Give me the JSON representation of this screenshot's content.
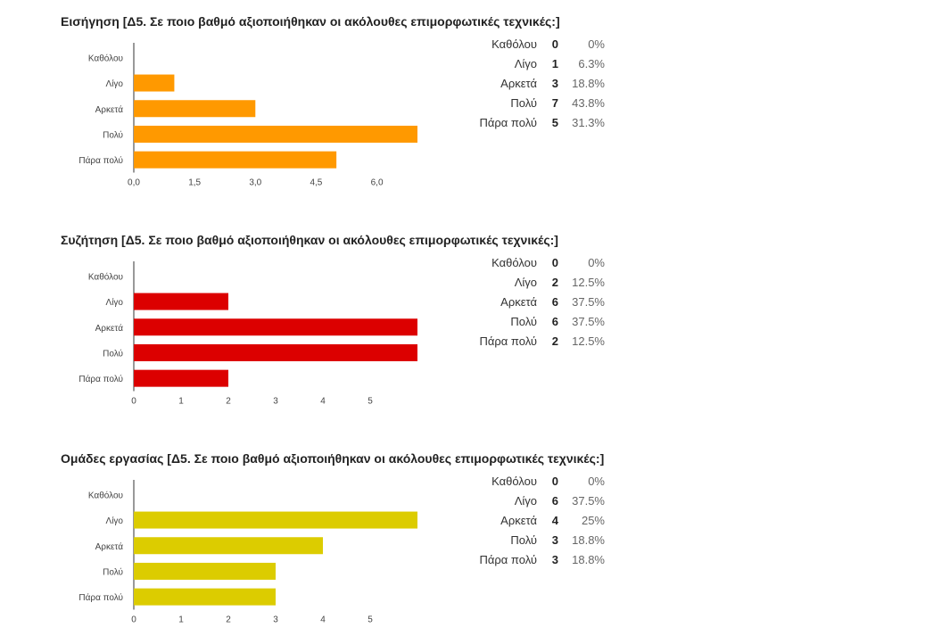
{
  "chart_data": [
    {
      "type": "bar",
      "orientation": "horizontal",
      "title": "Εισήγηση [Δ5. Σε ποιο βαθμό αξιοποιήθηκαν οι ακόλουθες επιμορφωτικές τεχνικές:]",
      "categories": [
        "Καθόλου",
        "Λίγο",
        "Αρκετά",
        "Πολύ",
        "Πάρα πολύ"
      ],
      "values": [
        0,
        1,
        3,
        7,
        5
      ],
      "percentages": [
        "0%",
        "6.3%",
        "18.8%",
        "43.8%",
        "31.3%"
      ],
      "xticks": [
        "0,0",
        "1,5",
        "3,0",
        "4,5",
        "6,0"
      ],
      "xlim": [
        0,
        7
      ],
      "color": "#FF9900"
    },
    {
      "type": "bar",
      "orientation": "horizontal",
      "title": "Συζήτηση [Δ5. Σε ποιο βαθμό αξιοποιήθηκαν οι ακόλουθες επιμορφωτικές τεχνικές:]",
      "categories": [
        "Καθόλου",
        "Λίγο",
        "Αρκετά",
        "Πολύ",
        "Πάρα πολύ"
      ],
      "values": [
        0,
        2,
        6,
        6,
        2
      ],
      "percentages": [
        "0%",
        "12.5%",
        "37.5%",
        "37.5%",
        "12.5%"
      ],
      "xticks": [
        "0",
        "1",
        "2",
        "3",
        "4",
        "5"
      ],
      "xlim": [
        0,
        6
      ],
      "color": "#DC0000"
    },
    {
      "type": "bar",
      "orientation": "horizontal",
      "title": "Ομάδες εργασίας [Δ5. Σε ποιο βαθμό αξιοποιήθηκαν οι ακόλουθες επιμορφωτικές τεχνικές:]",
      "categories": [
        "Καθόλου",
        "Λίγο",
        "Αρκετά",
        "Πολύ",
        "Πάρα πολύ"
      ],
      "values": [
        0,
        6,
        4,
        3,
        3
      ],
      "percentages": [
        "0%",
        "37.5%",
        "25%",
        "18.8%",
        "18.8%"
      ],
      "xticks": [
        "0",
        "1",
        "2",
        "3",
        "4",
        "5"
      ],
      "xlim": [
        0,
        6
      ],
      "color": "#DCCC00"
    }
  ]
}
